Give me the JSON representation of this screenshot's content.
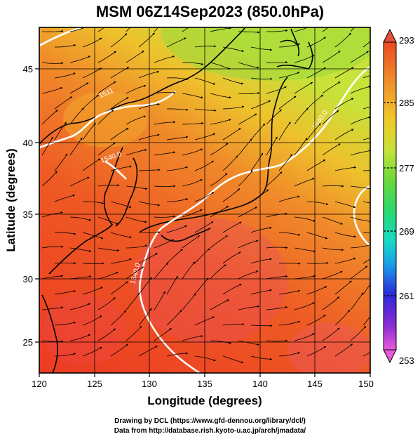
{
  "title": "MSM 06Z14Sep2023 (850.0hPa)",
  "axes": {
    "xlabel": "Longitude (degrees)",
    "ylabel": "Latitude  (degrees)",
    "x_ticks": [
      "120",
      "125",
      "130",
      "135",
      "140",
      "145",
      "150"
    ],
    "y_ticks": [
      "25",
      "30",
      "35",
      "40",
      "45"
    ],
    "xlim": [
      120,
      150
    ],
    "ylim": [
      22.4,
      47.6
    ]
  },
  "colorbar": {
    "ticks": [
      "293",
      "285",
      "277",
      "269",
      "261",
      "253"
    ],
    "range": [
      253,
      293
    ],
    "colors": [
      "#e85ad8",
      "#8a2cd6",
      "#2a2ad8",
      "#1aa0e8",
      "#17d8c8",
      "#2ad870",
      "#6ad83a",
      "#c8e23a",
      "#f0c82a",
      "#f08a2a",
      "#ec4a22",
      "#e8503a"
    ]
  },
  "contour_labels": [
    "1540.0",
    "1540.0",
    "1540.0",
    "1511"
  ],
  "footer": {
    "line1": "Drawing by DCL (https://www.gfd-dennou.org/library/dcl/)",
    "line2": "Data from http://database.rish.kyoto-u.ac.jp/arch/jmadata/"
  },
  "chart_data": {
    "type": "heatmap",
    "title": "MSM 06Z14Sep2023 (850.0hPa)",
    "xlabel": "Longitude (degrees)",
    "ylabel": "Latitude  (degrees)",
    "xlim": [
      120,
      150
    ],
    "ylim": [
      22.4,
      47.6
    ],
    "colorbar_range": [
      253,
      293
    ],
    "colorbar_ticks": [
      293,
      285,
      277,
      269,
      261,
      253
    ],
    "contour_value": 1540.0,
    "grid": true
  }
}
